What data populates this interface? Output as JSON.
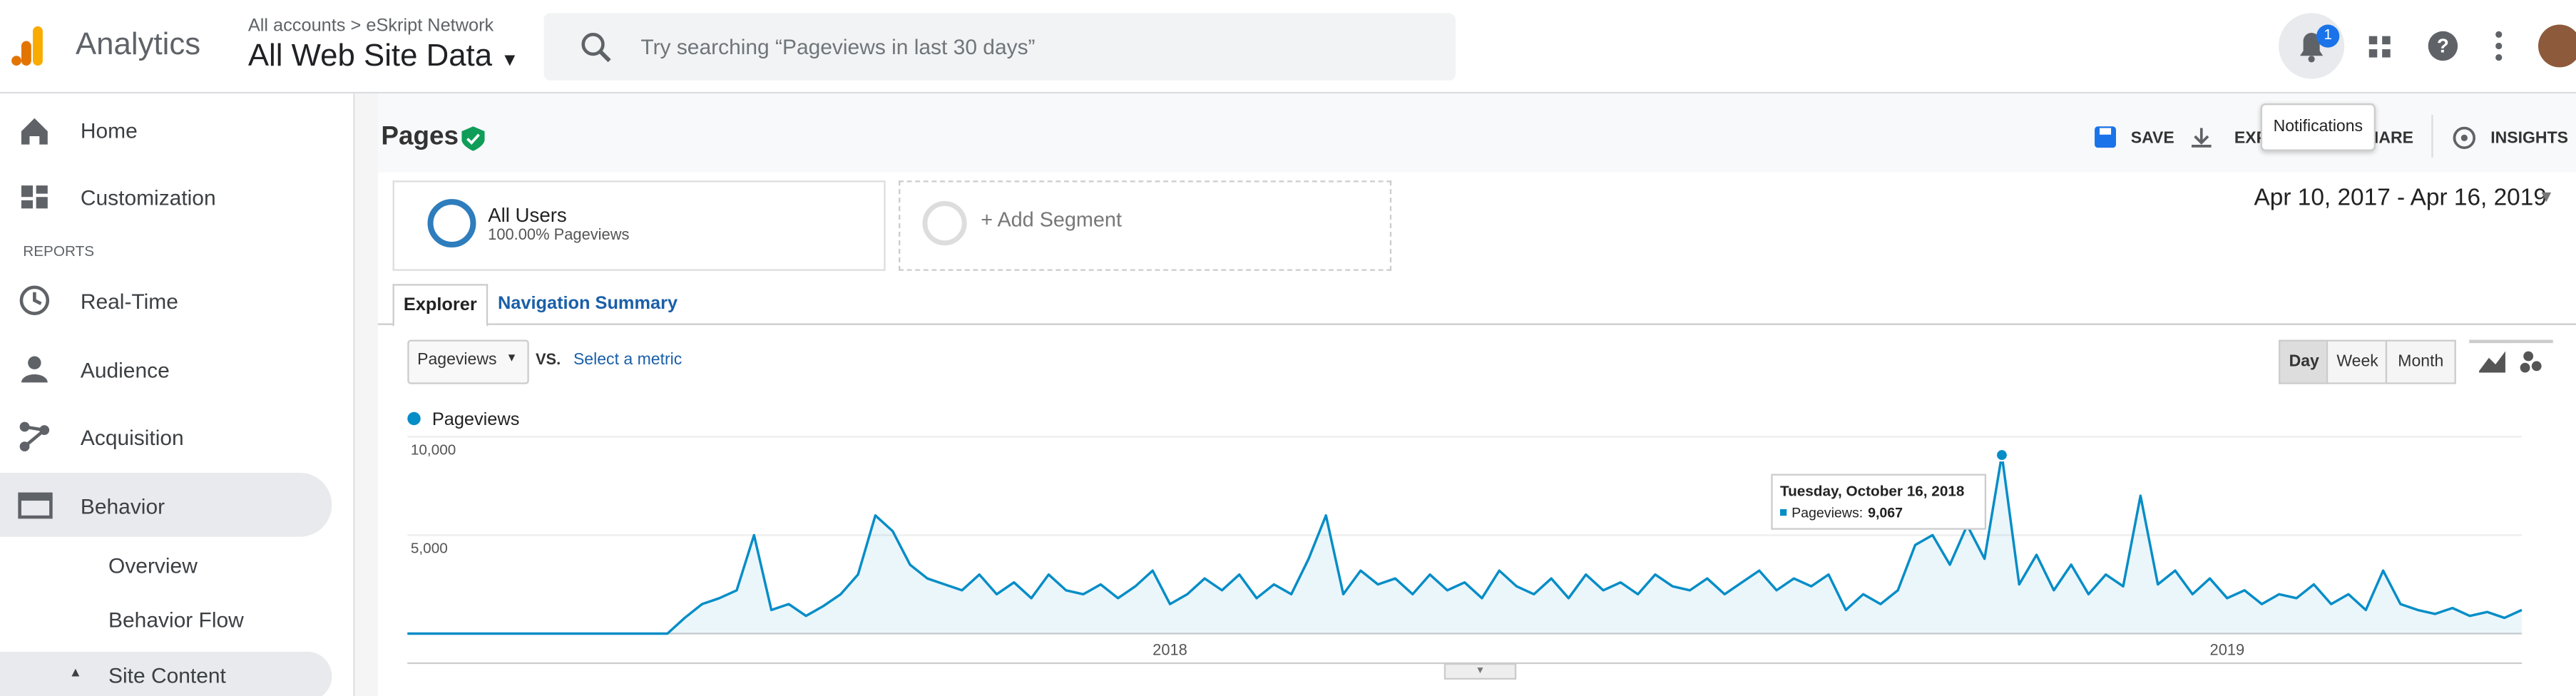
{
  "header": {
    "app_name": "Analytics",
    "breadcrumb": [
      "All accounts",
      "eSkript Network"
    ],
    "property": "All Web Site Data",
    "search_placeholder": "Try searching “Pageviews in last 30 days”",
    "notification_count": "1",
    "tooltip": "Notifications"
  },
  "sidebar": {
    "items": [
      "Home",
      "Customization"
    ],
    "section": "REPORTS",
    "reports": [
      "Real-Time",
      "Audience",
      "Acquisition",
      "Behavior"
    ],
    "sub_items": [
      "Overview",
      "Behavior Flow",
      "Site Content"
    ]
  },
  "page": {
    "title": "Pages",
    "actions": [
      "SAVE",
      "EXPORT",
      "SHARE",
      "INSIGHTS"
    ],
    "segments": [
      {
        "name": "All Users",
        "detail": "100.00% Pageviews"
      }
    ],
    "add_segment": "+ Add Segment",
    "date_range": "Apr 10, 2017 - Apr 16, 2019",
    "tabs": [
      "Explorer",
      "Navigation Summary"
    ],
    "metric": "Pageviews",
    "vs": "VS.",
    "select_metric": "Select a metric",
    "granularity": [
      "Day",
      "Week",
      "Month"
    ]
  },
  "chart_data": {
    "type": "line",
    "grid": true,
    "ylim": [
      0,
      10000
    ],
    "yticks": [
      {
        "value": 10000,
        "label": "10,000"
      },
      {
        "value": 5000,
        "label": "5,000"
      }
    ],
    "categories": [
      null,
      null,
      null,
      null,
      null,
      null,
      null,
      null,
      null,
      null,
      null,
      null,
      null,
      null,
      null,
      null,
      null,
      null,
      null,
      null,
      null,
      null,
      null,
      null,
      null,
      null,
      null,
      null,
      null,
      null,
      null,
      null,
      null,
      null,
      null,
      null,
      null,
      null,
      null,
      null,
      null,
      null,
      null,
      null,
      "2018",
      null,
      null,
      null,
      null,
      null,
      null,
      null,
      null,
      null,
      null,
      null,
      null,
      null,
      null,
      null,
      null,
      null,
      null,
      null,
      null,
      null,
      null,
      null,
      null,
      null,
      null,
      null,
      null,
      null,
      null,
      null,
      null,
      null,
      null,
      null,
      null,
      null,
      null,
      null,
      null,
      null,
      null,
      null,
      null,
      null,
      null,
      null,
      null,
      null,
      null,
      null,
      null,
      null,
      null,
      null,
      null,
      null,
      null,
      null,
      null,
      "2019",
      null,
      null,
      null,
      null,
      null,
      null,
      null,
      null,
      null,
      null,
      null,
      null,
      null,
      null,
      null,
      null,
      null
    ],
    "series": [
      {
        "name": "Pageviews",
        "color": "#058dc7",
        "values": [
          0,
          0,
          0,
          0,
          0,
          0,
          0,
          0,
          0,
          0,
          0,
          0,
          0,
          0,
          0,
          0,
          800,
          1500,
          1800,
          2200,
          5000,
          1200,
          1500,
          900,
          1400,
          2000,
          3000,
          6000,
          5200,
          3500,
          2800,
          2500,
          2200,
          3000,
          2000,
          2600,
          1800,
          3000,
          2200,
          2000,
          2500,
          1800,
          2400,
          3200,
          1500,
          2000,
          2800,
          2200,
          3000,
          1800,
          2500,
          2000,
          3800,
          6000,
          2000,
          3200,
          2500,
          2800,
          2000,
          3000,
          2200,
          2600,
          1800,
          3200,
          2400,
          2000,
          2800,
          1800,
          3000,
          2200,
          2600,
          2000,
          3000,
          2400,
          2200,
          2800,
          2000,
          2600,
          3200,
          2200,
          2800,
          2400,
          3000,
          1200,
          2000,
          1500,
          2200,
          4500,
          5000,
          3500,
          5500,
          3800,
          9067,
          2500,
          4000,
          2200,
          3500,
          2000,
          3000,
          2400,
          7000,
          2500,
          3200,
          2000,
          2800,
          1800,
          2200,
          1500,
          2000,
          1800,
          2500,
          1500,
          2000,
          1200,
          3200,
          1500,
          1200,
          1000,
          1300,
          900,
          1100,
          800,
          1200
        ]
      }
    ],
    "tooltip": {
      "date": "Tuesday, October 16, 2018",
      "label": "Pageviews:",
      "value": "9,067"
    }
  }
}
